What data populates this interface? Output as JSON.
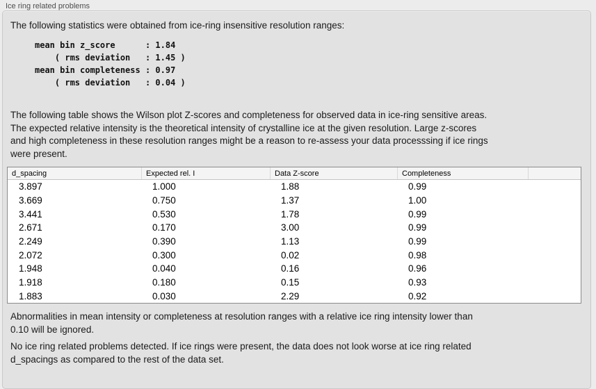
{
  "window": {
    "title": "Ice ring related problems"
  },
  "intro": "The following statistics were obtained from ice-ring insensitive resolution ranges:",
  "stats_block": "mean bin z_score      : 1.84\n    ( rms deviation   : 1.45 )\nmean bin completeness : 0.97\n    ( rms deviation   : 0.04 )",
  "stats": {
    "mean_bin_z_score": "1.84",
    "z_score_rms_deviation": "1.45",
    "mean_bin_completeness": "0.97",
    "completeness_rms_deviation": "0.04"
  },
  "description": "The following table shows the Wilson plot Z-scores and completeness for observed data in ice-ring sensitive areas.\nThe expected relative intensity is the theoretical intensity of crystalline ice at the given resolution. Large z-scores\nand high completeness in these resolution ranges might be a reason to re-assess your data processsing if ice rings\nwere present.",
  "table": {
    "columns": [
      "d_spacing",
      "Expected rel. I",
      "Data Z-score",
      "Completeness"
    ],
    "rows": [
      {
        "d_spacing": "3.897",
        "expected_rel_i": "1.000",
        "data_z_score": "1.88",
        "completeness": "0.99"
      },
      {
        "d_spacing": "3.669",
        "expected_rel_i": "0.750",
        "data_z_score": "1.37",
        "completeness": "1.00"
      },
      {
        "d_spacing": "3.441",
        "expected_rel_i": "0.530",
        "data_z_score": "1.78",
        "completeness": "0.99"
      },
      {
        "d_spacing": "2.671",
        "expected_rel_i": "0.170",
        "data_z_score": "3.00",
        "completeness": "0.99"
      },
      {
        "d_spacing": "2.249",
        "expected_rel_i": "0.390",
        "data_z_score": "1.13",
        "completeness": "0.99"
      },
      {
        "d_spacing": "2.072",
        "expected_rel_i": "0.300",
        "data_z_score": "0.02",
        "completeness": "0.98"
      },
      {
        "d_spacing": "1.948",
        "expected_rel_i": "0.040",
        "data_z_score": "0.16",
        "completeness": "0.96"
      },
      {
        "d_spacing": "1.918",
        "expected_rel_i": "0.180",
        "data_z_score": "0.15",
        "completeness": "0.93"
      },
      {
        "d_spacing": "1.883",
        "expected_rel_i": "0.030",
        "data_z_score": "2.29",
        "completeness": "0.92"
      }
    ]
  },
  "notes": {
    "ignore_note": "Abnormalities in mean intensity or completeness at resolution ranges with a relative ice ring intensity lower than\n0.10 will be ignored.",
    "conclusion": "No ice ring related problems detected. If ice rings were present, the data does not look worse at ice ring related\nd_spacings as compared to the rest of the data set."
  },
  "colors": {
    "window_background": "#ececec",
    "group_box_background": "#e2e2e2",
    "group_box_border": "#c9c9c9",
    "table_border": "#8a8a8a",
    "table_header_background": "#f4f4f4",
    "table_body_background": "#ffffff",
    "text": "#1a1a1a"
  }
}
